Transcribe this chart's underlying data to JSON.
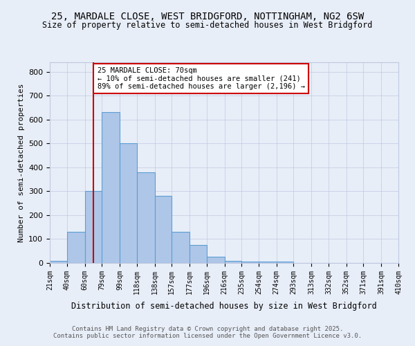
{
  "title1": "25, MARDALE CLOSE, WEST BRIDGFORD, NOTTINGHAM, NG2 6SW",
  "title2": "Size of property relative to semi-detached houses in West Bridgford",
  "xlabel": "Distribution of semi-detached houses by size in West Bridgford",
  "ylabel": "Number of semi-detached properties",
  "bins": [
    21,
    40,
    60,
    79,
    99,
    118,
    138,
    157,
    177,
    196,
    216,
    235,
    254,
    274,
    293,
    313,
    332,
    352,
    371,
    391,
    410
  ],
  "counts": [
    10,
    130,
    300,
    630,
    500,
    380,
    280,
    130,
    75,
    25,
    10,
    5,
    5,
    5,
    0,
    0,
    0,
    0,
    0,
    0
  ],
  "bar_color": "#aec6e8",
  "bar_edge_color": "#5a9fd4",
  "property_line_x": 70,
  "property_line_color": "#cc0000",
  "annotation_text": "25 MARDALE CLOSE: 70sqm\n← 10% of semi-detached houses are smaller (241)\n89% of semi-detached houses are larger (2,196) →",
  "annotation_box_color": "#ffffff",
  "annotation_box_edge_color": "#cc0000",
  "footer_text": "Contains HM Land Registry data © Crown copyright and database right 2025.\nContains public sector information licensed under the Open Government Licence v3.0.",
  "background_color": "#e8eef8",
  "ylim": [
    0,
    840
  ],
  "yticks": [
    0,
    100,
    200,
    300,
    400,
    500,
    600,
    700,
    800
  ]
}
